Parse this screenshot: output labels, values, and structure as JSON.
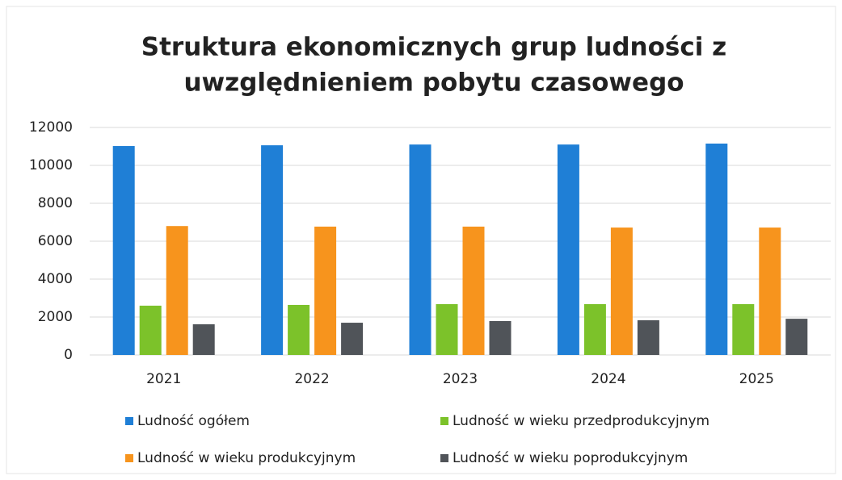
{
  "chart_data": {
    "type": "bar",
    "title": [
      "Struktura ekonomicznych grup ludności z",
      "uwzględnieniem pobytu czasowego"
    ],
    "categories": [
      "2021",
      "2022",
      "2023",
      "2024",
      "2025"
    ],
    "series": [
      {
        "name": "Ludność ogółem",
        "color": "#1f7fd6",
        "values": [
          11020,
          11060,
          11100,
          11100,
          11150
        ]
      },
      {
        "name": "Ludność w wieku przedprodukcyjnym",
        "color": "#7cc22a",
        "values": [
          2600,
          2640,
          2680,
          2680,
          2680
        ]
      },
      {
        "name": "Ludność w wieku produkcyjnym",
        "color": "#f7941d",
        "values": [
          6800,
          6770,
          6770,
          6720,
          6720
        ]
      },
      {
        "name": "Ludność w wieku poprodukcyjnym",
        "color": "#505459",
        "values": [
          1620,
          1700,
          1790,
          1830,
          1910
        ]
      }
    ],
    "ylim": [
      0,
      12000
    ],
    "yticks": [
      0,
      2000,
      4000,
      6000,
      8000,
      10000,
      12000
    ],
    "grid": true,
    "legend": "bottom"
  }
}
